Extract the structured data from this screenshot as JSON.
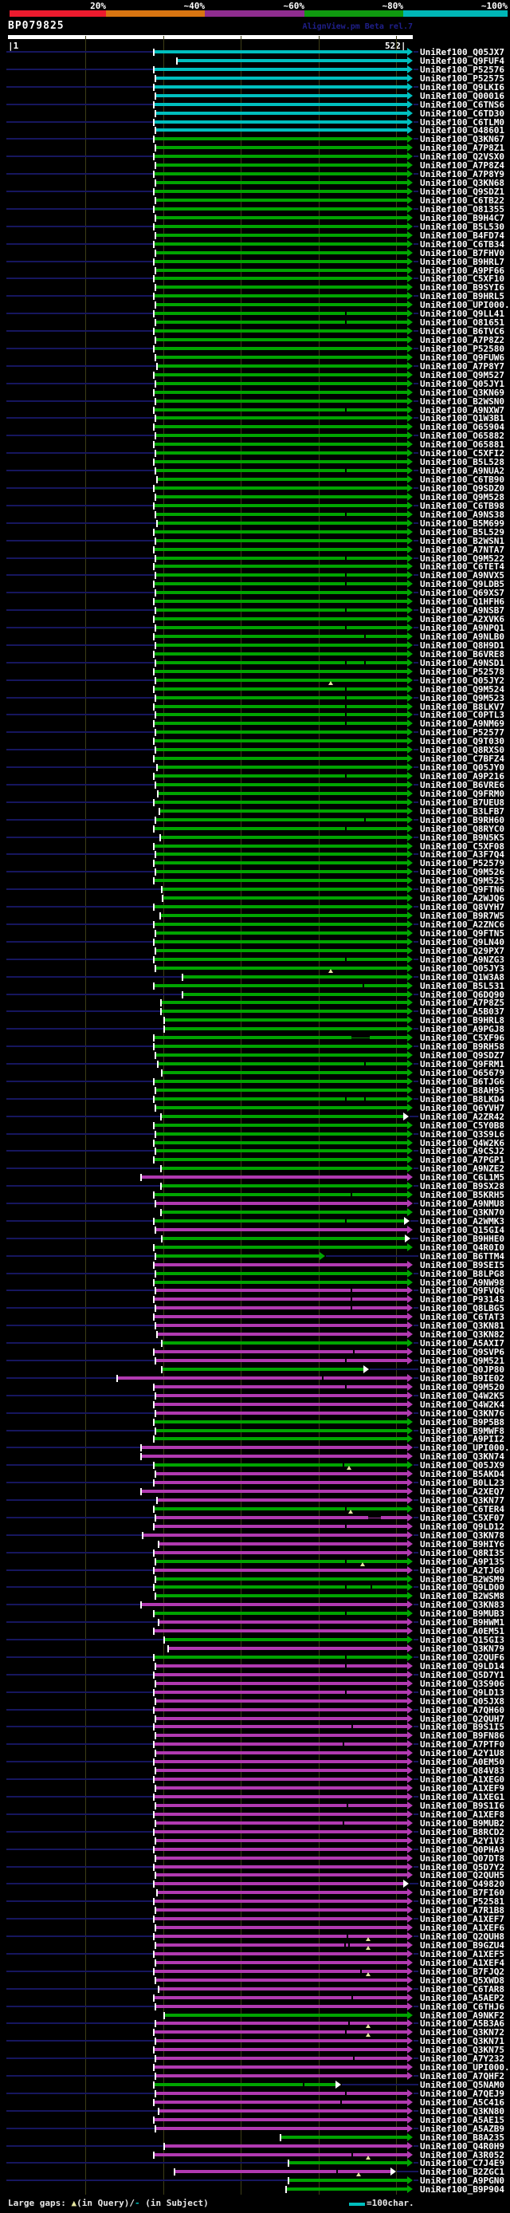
{
  "title": "BP079825",
  "watermark": "AlignView.pm Beta rel.7",
  "ruler": {
    "start": "|1",
    "end": "522|"
  },
  "scale": {
    "labels": [
      "20%",
      "~40%",
      "~60%",
      "~80%",
      "~100%"
    ],
    "key_colors": [
      "#ed1b2e",
      "#d87511",
      "#8f2d8f",
      "#0f9a0f",
      "#00b6b6"
    ]
  },
  "colors": {
    "c": "#00bfbf",
    "g": "#00a400",
    "m": "#b13ab1",
    "navy": "#16165e",
    "grid": "#3d3d16",
    "gap_triangle": "#e6e6a0",
    "white": "#ffffff"
  },
  "footer": {
    "prefix": "Large gaps: ",
    "triangle": "▲",
    "mid": "(in Query)/",
    "dash": "-",
    "suffix": " (in Subject)",
    "unit": "=100char."
  },
  "label_prefix": "UniRef100_",
  "rows": [
    [
      "Q05JX7",
      "c",
      194,
      518
    ],
    [
      "Q9FUF4",
      "c",
      223,
      518
    ],
    [
      "P52576",
      "c",
      194,
      518
    ],
    [
      "P52575",
      "c",
      196,
      518
    ],
    [
      "Q9LKI6",
      "c",
      194,
      518
    ],
    [
      "Q00016",
      "c",
      196,
      518
    ],
    [
      "C6TNS6",
      "c",
      194,
      518
    ],
    [
      "C6TD30",
      "c",
      196,
      518
    ],
    [
      "C6TLM0",
      "c",
      194,
      518
    ],
    [
      "O48601",
      "c",
      196,
      518
    ],
    [
      "Q3KN67",
      "g",
      194,
      518
    ],
    [
      "A7P8Z1",
      "g",
      196,
      518
    ],
    [
      "Q2VSX0",
      "g",
      194,
      518
    ],
    [
      "A7P8Z4",
      "g",
      196,
      518
    ],
    [
      "A7P8Y9",
      "g",
      194,
      518
    ],
    [
      "Q3KN68",
      "g",
      196,
      518
    ],
    [
      "Q9SDZ1",
      "g",
      194,
      518
    ],
    [
      "C6TB22",
      "g",
      196,
      518
    ],
    [
      "O81355",
      "g",
      194,
      518
    ],
    [
      "B9H4C7",
      "g",
      196,
      518
    ],
    [
      "B5L530",
      "g",
      194,
      518
    ],
    [
      "B4FD74",
      "g",
      196,
      518
    ],
    [
      "C6TB34",
      "g",
      194,
      518
    ],
    [
      "B7FHV0",
      "g",
      196,
      518
    ],
    [
      "B9HRL7",
      "g",
      194,
      518
    ],
    [
      "A9PF66",
      "g",
      196,
      518
    ],
    [
      "C5XF10",
      "g",
      194,
      518
    ],
    [
      "B9SYI6",
      "g",
      196,
      518
    ],
    [
      "B9HRL5",
      "g",
      194,
      518
    ],
    [
      "UPI000..",
      "g",
      196,
      518
    ],
    [
      "Q9LL41",
      "g",
      194,
      518,
      {
        "n": [
          433
        ]
      }
    ],
    [
      "O81651",
      "g",
      196,
      518,
      {
        "n": [
          433
        ]
      }
    ],
    [
      "B6TVC6",
      "g",
      194,
      518
    ],
    [
      "A7P8Z2",
      "g",
      196,
      518
    ],
    [
      "P52580",
      "g",
      194,
      518
    ],
    [
      "Q9FUW6",
      "g",
      196,
      518
    ],
    [
      "A7P8Y7",
      "g",
      198,
      518
    ],
    [
      "Q9M527",
      "g",
      194,
      518
    ],
    [
      "Q05JY1",
      "g",
      196,
      518
    ],
    [
      "Q3KN69",
      "g",
      194,
      518
    ],
    [
      "B2WSN0",
      "g",
      196,
      518
    ],
    [
      "A9NXW7",
      "g",
      194,
      518,
      {
        "n": [
          433
        ]
      }
    ],
    [
      "Q1W3B1",
      "g",
      196,
      518
    ],
    [
      "O65904",
      "g",
      194,
      518
    ],
    [
      "O65882",
      "g",
      196,
      518
    ],
    [
      "O65881",
      "g",
      194,
      518
    ],
    [
      "C5XFI2",
      "g",
      196,
      518
    ],
    [
      "B5L528",
      "g",
      194,
      518
    ],
    [
      "A9NUA2",
      "g",
      196,
      518,
      {
        "n": [
          433
        ]
      }
    ],
    [
      "C6TB90",
      "g",
      198,
      518
    ],
    [
      "Q9SDZ0",
      "g",
      194,
      518
    ],
    [
      "Q9M528",
      "g",
      196,
      518
    ],
    [
      "C6TB98",
      "g",
      194,
      518
    ],
    [
      "A9NS38",
      "g",
      196,
      518,
      {
        "n": [
          433
        ]
      }
    ],
    [
      "B5M699",
      "g",
      198,
      518
    ],
    [
      "B5L529",
      "g",
      194,
      518
    ],
    [
      "B2WSN1",
      "g",
      196,
      518
    ],
    [
      "A7NTA7",
      "g",
      194,
      518
    ],
    [
      "Q9M522",
      "g",
      196,
      518,
      {
        "n": [
          433
        ]
      }
    ],
    [
      "C6TET4",
      "g",
      194,
      518
    ],
    [
      "A9NVX5",
      "g",
      196,
      518,
      {
        "n": [
          433
        ]
      }
    ],
    [
      "Q9LDB5",
      "g",
      194,
      518,
      {
        "n": [
          433
        ]
      }
    ],
    [
      "Q69XS7",
      "g",
      196,
      518
    ],
    [
      "Q1HFH6",
      "g",
      194,
      518
    ],
    [
      "A9NSB7",
      "g",
      196,
      518,
      {
        "n": [
          433
        ]
      }
    ],
    [
      "A2XVK6",
      "g",
      194,
      518
    ],
    [
      "A9NPQ1",
      "g",
      196,
      518,
      {
        "n": [
          433
        ]
      }
    ],
    [
      "A9NLB0",
      "g",
      194,
      518,
      {
        "n": [
          457
        ]
      }
    ],
    [
      "Q8H9D1",
      "g",
      196,
      518
    ],
    [
      "B6VRE8",
      "g",
      194,
      518
    ],
    [
      "A9NSD1",
      "g",
      196,
      518,
      {
        "n": [
          433,
          457
        ]
      }
    ],
    [
      "P52578",
      "g",
      194,
      518
    ],
    [
      "Q05JY2",
      "g",
      196,
      518,
      {
        "t": [
          415
        ]
      }
    ],
    [
      "Q9M524",
      "g",
      194,
      518,
      {
        "n": [
          433
        ]
      }
    ],
    [
      "Q9M523",
      "g",
      196,
      518,
      {
        "n": [
          433
        ]
      }
    ],
    [
      "B8LKV7",
      "g",
      194,
      518,
      {
        "n": [
          433
        ]
      }
    ],
    [
      "C0PTL3",
      "g",
      196,
      518,
      {
        "n": [
          433
        ]
      }
    ],
    [
      "A9NM69",
      "g",
      194,
      518,
      {
        "n": [
          433
        ]
      }
    ],
    [
      "P52577",
      "g",
      196,
      518
    ],
    [
      "Q9T030",
      "g",
      194,
      518
    ],
    [
      "Q8RXS0",
      "g",
      196,
      518
    ],
    [
      "C7BFZ4",
      "g",
      194,
      518
    ],
    [
      "Q05JY0",
      "g",
      198,
      518
    ],
    [
      "A9P216",
      "g",
      194,
      518,
      {
        "n": [
          433
        ]
      }
    ],
    [
      "B6VRE6",
      "g",
      196,
      518
    ],
    [
      "Q9FRM0",
      "g",
      199,
      518
    ],
    [
      "B7UEU8",
      "g",
      194,
      518
    ],
    [
      "B3LFB7",
      "g",
      201,
      518
    ],
    [
      "B9RH60",
      "g",
      196,
      518,
      {
        "n": [
          457
        ]
      }
    ],
    [
      "Q8RYC0",
      "g",
      194,
      518,
      {
        "n": [
          433
        ]
      }
    ],
    [
      "B9N5K5",
      "g",
      202,
      518
    ],
    [
      "C5XF08",
      "g",
      194,
      518
    ],
    [
      "A3F7Q4",
      "g",
      196,
      518
    ],
    [
      "P52579",
      "g",
      194,
      518
    ],
    [
      "Q9M526",
      "g",
      196,
      518
    ],
    [
      "Q9M525",
      "g",
      194,
      518
    ],
    [
      "Q9FTN6",
      "g",
      204,
      518
    ],
    [
      "A2WJQ6",
      "g",
      205,
      518
    ],
    [
      "Q8VYH7",
      "g",
      194,
      518
    ],
    [
      "B9R7W5",
      "g",
      202,
      518
    ],
    [
      "A2ZNC6",
      "g",
      194,
      518
    ],
    [
      "Q9FTN5",
      "g",
      196,
      518
    ],
    [
      "Q9LN40",
      "g",
      194,
      518
    ],
    [
      "Q29PX7",
      "g",
      196,
      518
    ],
    [
      "A9NZG3",
      "g",
      194,
      518,
      {
        "n": [
          433
        ]
      }
    ],
    [
      "Q05JY3",
      "g",
      196,
      518,
      {
        "t": [
          415
        ]
      }
    ],
    [
      "Q1W3A8",
      "g",
      230,
      518
    ],
    [
      "B5L531",
      "g",
      194,
      518,
      {
        "n": [
          455
        ]
      }
    ],
    [
      "Q6DQ90",
      "g",
      230,
      518
    ],
    [
      "A7P8Z5",
      "g",
      203,
      518
    ],
    [
      "A5B037",
      "g",
      203,
      518
    ],
    [
      "B9HRL8",
      "g",
      207,
      518
    ],
    [
      "A9PGJ8",
      "g",
      207,
      518
    ],
    [
      "C5XF96",
      "g",
      194,
      518,
      {
        "g2": [
          441,
          464
        ]
      }
    ],
    [
      "B9RH58",
      "g",
      194,
      518
    ],
    [
      "Q9SDZ7",
      "g",
      196,
      518
    ],
    [
      "Q9FRM1",
      "g",
      199,
      518,
      {
        "n": [
          457
        ]
      }
    ],
    [
      "O65679",
      "g",
      204,
      518
    ],
    [
      "B6TJG6",
      "g",
      194,
      518
    ],
    [
      "B8AH95",
      "g",
      196,
      518
    ],
    [
      "B8LKD4",
      "g",
      194,
      518,
      {
        "n": [
          433,
          457
        ]
      }
    ],
    [
      "Q6YVH7",
      "g",
      196,
      518
    ],
    [
      "A2ZR42",
      "g",
      203,
      513,
      {
        "w": 1
      }
    ],
    [
      "C5Y0B8",
      "g",
      194,
      518
    ],
    [
      "Q3S9L6",
      "g",
      196,
      518
    ],
    [
      "Q4W2K6",
      "g",
      194,
      518
    ],
    [
      "A9CSJ2",
      "g",
      196,
      518
    ],
    [
      "A7PGP1",
      "g",
      194,
      518
    ],
    [
      "A9NZE2",
      "g",
      203,
      518
    ],
    [
      "C6L1M5",
      "m",
      178,
      518
    ],
    [
      "B9SX28",
      "g",
      203,
      518
    ],
    [
      "B5KRH5",
      "g",
      194,
      518,
      {
        "n": [
          440
        ]
      }
    ],
    [
      "A9NMU8",
      "m",
      196,
      518
    ],
    [
      "Q3KN70",
      "g",
      203,
      518
    ],
    [
      "A2WMK3",
      "g",
      194,
      514,
      {
        "n": [
          433
        ],
        "w": 1
      }
    ],
    [
      "Q15GI4",
      "m",
      196,
      518
    ],
    [
      "B9HHE0",
      "g",
      204,
      515,
      {
        "w": 1
      }
    ],
    [
      "Q4R0I0",
      "g",
      194,
      518
    ],
    [
      "B6TTM4",
      "g",
      196,
      408
    ],
    [
      "B9SEI5",
      "m",
      194,
      518
    ],
    [
      "B8LPG8",
      "g",
      196,
      518
    ],
    [
      "A9NW98",
      "g",
      194,
      518
    ],
    [
      "Q9FVQ6",
      "m",
      196,
      518,
      {
        "n": [
          440
        ]
      }
    ],
    [
      "P93143",
      "m",
      194,
      518,
      {
        "n": [
          440
        ]
      }
    ],
    [
      "Q8LBG5",
      "m",
      196,
      518,
      {
        "n": [
          440
        ]
      }
    ],
    [
      "C6TAT3",
      "m",
      194,
      518
    ],
    [
      "Q3KN81",
      "m",
      196,
      518
    ],
    [
      "Q3KN82",
      "m",
      198,
      518
    ],
    [
      "A5AXI7",
      "g",
      204,
      518
    ],
    [
      "Q9SVP6",
      "m",
      194,
      518,
      {
        "n": [
          443
        ]
      }
    ],
    [
      "Q9M521",
      "m",
      196,
      518,
      {
        "n": [
          433
        ]
      }
    ],
    [
      "Q0JP80",
      "g",
      204,
      463,
      {
        "w": 1
      }
    ],
    [
      "B9IE02",
      "m",
      148,
      518,
      {
        "n": [
          404
        ]
      }
    ],
    [
      "Q9M520",
      "m",
      194,
      518,
      {
        "n": [
          433
        ]
      }
    ],
    [
      "Q4W2K5",
      "m",
      196,
      518
    ],
    [
      "Q4W2K4",
      "m",
      194,
      518
    ],
    [
      "Q3KN76",
      "m",
      196,
      518
    ],
    [
      "B9P5B8",
      "g",
      194,
      518
    ],
    [
      "B9MWF8",
      "g",
      196,
      518
    ],
    [
      "A9PII2",
      "g",
      194,
      518
    ],
    [
      "UPI000..",
      "m",
      178,
      518
    ],
    [
      "Q3KN74",
      "m",
      178,
      518
    ],
    [
      "Q05JX9",
      "g",
      194,
      518,
      {
        "n": [
          430
        ],
        "t": [
          438
        ]
      }
    ],
    [
      "B5AKD4",
      "m",
      196,
      518
    ],
    [
      "B0LL23",
      "m",
      194,
      518
    ],
    [
      "A2XEQ7",
      "m",
      178,
      518
    ],
    [
      "Q3KN77",
      "m",
      198,
      518
    ],
    [
      "C6TER4",
      "g",
      194,
      518,
      {
        "n": [
          433
        ],
        "t": [
          440
        ]
      }
    ],
    [
      "C5XF07",
      "m",
      196,
      518,
      {
        "g2": [
          462,
          478
        ]
      }
    ],
    [
      "Q9LD12",
      "m",
      194,
      518,
      {
        "n": [
          433
        ]
      }
    ],
    [
      "Q3KN78",
      "m",
      180,
      518
    ],
    [
      "B9HIY6",
      "m",
      200,
      518
    ],
    [
      "Q8RI35",
      "m",
      194,
      518
    ],
    [
      "A9P135",
      "g",
      196,
      518,
      {
        "n": [
          433
        ],
        "t": [
          455
        ]
      }
    ],
    [
      "A2TJG0",
      "m",
      194,
      518
    ],
    [
      "B2WSM9",
      "g",
      196,
      518
    ],
    [
      "Q9LD00",
      "g",
      194,
      518,
      {
        "n": [
          433,
          465
        ]
      }
    ],
    [
      "B2WSM8",
      "g",
      196,
      518
    ],
    [
      "Q3KN83",
      "m",
      178,
      518
    ],
    [
      "B9MUB3",
      "g",
      194,
      518,
      {
        "n": [
          433
        ]
      }
    ],
    [
      "B9HWM1",
      "m",
      200,
      518
    ],
    [
      "A0EM51",
      "m",
      194,
      518
    ],
    [
      "Q15GI3",
      "g",
      207,
      518
    ],
    [
      "Q3KN79",
      "m",
      212,
      518
    ],
    [
      "Q2QUF6",
      "g",
      194,
      518,
      {
        "n": [
          433
        ]
      }
    ],
    [
      "Q9LD14",
      "m",
      196,
      518,
      {
        "n": [
          433
        ]
      }
    ],
    [
      "Q5D7Y1",
      "m",
      194,
      518
    ],
    [
      "Q3S906",
      "m",
      196,
      518
    ],
    [
      "Q9LD13",
      "m",
      194,
      518,
      {
        "n": [
          433
        ]
      }
    ],
    [
      "Q05JX8",
      "m",
      196,
      518
    ],
    [
      "A7QH60",
      "m",
      194,
      518
    ],
    [
      "Q2QUH7",
      "m",
      196,
      518
    ],
    [
      "B9S1I5",
      "m",
      194,
      518,
      {
        "n": [
          441
        ]
      }
    ],
    [
      "B9FN86",
      "m",
      196,
      518
    ],
    [
      "A7PTF0",
      "m",
      194,
      518,
      {
        "n": [
          430
        ]
      }
    ],
    [
      "A2Y1U8",
      "m",
      196,
      518
    ],
    [
      "A0EM50",
      "m",
      194,
      518
    ],
    [
      "Q84V83",
      "m",
      196,
      518
    ],
    [
      "A1XEG0",
      "m",
      194,
      518
    ],
    [
      "A1XEF9",
      "m",
      196,
      518
    ],
    [
      "A1XEG1",
      "m",
      194,
      518
    ],
    [
      "B9S1I6",
      "m",
      196,
      518,
      {
        "n": [
          435
        ]
      }
    ],
    [
      "A1XEF8",
      "m",
      194,
      518
    ],
    [
      "B9MUB2",
      "m",
      196,
      518,
      {
        "n": [
          430
        ]
      }
    ],
    [
      "B8RCD2",
      "m",
      194,
      518
    ],
    [
      "A2Y1V3",
      "m",
      196,
      518
    ],
    [
      "Q0PHA9",
      "m",
      194,
      518
    ],
    [
      "Q07DT8",
      "m",
      196,
      518
    ],
    [
      "Q5D7Y2",
      "m",
      194,
      518
    ],
    [
      "Q2QUH5",
      "m",
      196,
      518
    ],
    [
      "O49820",
      "m",
      194,
      513,
      {
        "w": 1
      }
    ],
    [
      "B7FI60",
      "m",
      198,
      518
    ],
    [
      "P52581",
      "m",
      194,
      518
    ],
    [
      "A7R1B8",
      "m",
      196,
      518
    ],
    [
      "A1XEF7",
      "m",
      194,
      518
    ],
    [
      "A1XEF6",
      "m",
      196,
      518
    ],
    [
      "Q2QUH8",
      "m",
      194,
      518,
      {
        "n": [
          435
        ],
        "t": [
          462
        ]
      }
    ],
    [
      "B9GZU4",
      "m",
      196,
      518,
      {
        "n": [
          432,
          437
        ],
        "t": [
          462
        ]
      }
    ],
    [
      "A1XEF5",
      "m",
      194,
      518
    ],
    [
      "A1XEF4",
      "m",
      196,
      518
    ],
    [
      "B7FJQ2",
      "m",
      194,
      518,
      {
        "n": [
          452
        ],
        "t": [
          462
        ]
      }
    ],
    [
      "Q5XWD8",
      "m",
      196,
      518
    ],
    [
      "C6TAR8",
      "m",
      200,
      518
    ],
    [
      "A5AEP2",
      "m",
      194,
      518,
      {
        "n": [
          441
        ]
      }
    ],
    [
      "C6THJ6",
      "m",
      196,
      518
    ],
    [
      "A9NKF2",
      "g",
      207,
      518
    ],
    [
      "A5B3A6",
      "m",
      196,
      518,
      {
        "n": [
          437
        ],
        "t": [
          462
        ]
      }
    ],
    [
      "Q3KN72",
      "m",
      194,
      518,
      {
        "n": [
          433
        ],
        "t": [
          462
        ]
      }
    ],
    [
      "Q3KN71",
      "m",
      196,
      518
    ],
    [
      "Q3KN75",
      "m",
      194,
      518
    ],
    [
      "A7Y232",
      "m",
      196,
      518,
      {
        "n": [
          443
        ]
      }
    ],
    [
      "UPI000..",
      "m",
      194,
      518
    ],
    [
      "A7QHF2",
      "m",
      196,
      518
    ],
    [
      "Q5NAM0",
      "g",
      194,
      428,
      {
        "n": [
          380
        ],
        "w": 1
      }
    ],
    [
      "A7QEJ9",
      "m",
      196,
      518,
      {
        "n": [
          433
        ]
      }
    ],
    [
      "A5C416",
      "m",
      194,
      518,
      {
        "n": [
          427
        ]
      }
    ],
    [
      "Q3KN80",
      "m",
      200,
      518
    ],
    [
      "A5AE15",
      "m",
      194,
      518
    ],
    [
      "A5AZB9",
      "m",
      196,
      518
    ],
    [
      "B8A235",
      "g",
      353,
      518
    ],
    [
      "Q4R0H9",
      "m",
      207,
      518
    ],
    [
      "A3R052",
      "m",
      194,
      518,
      {
        "n": [
          441
        ],
        "t": [
          462
        ]
      }
    ],
    [
      "C7J4E9",
      "g",
      363,
      518
    ],
    [
      "B2ZGC1",
      "m",
      220,
      497,
      {
        "n": [
          422
        ],
        "t": [
          450
        ],
        "w": 1
      }
    ],
    [
      "A9PGN0",
      "g",
      363,
      518
    ],
    [
      "B9P904",
      "g",
      360,
      518
    ]
  ]
}
